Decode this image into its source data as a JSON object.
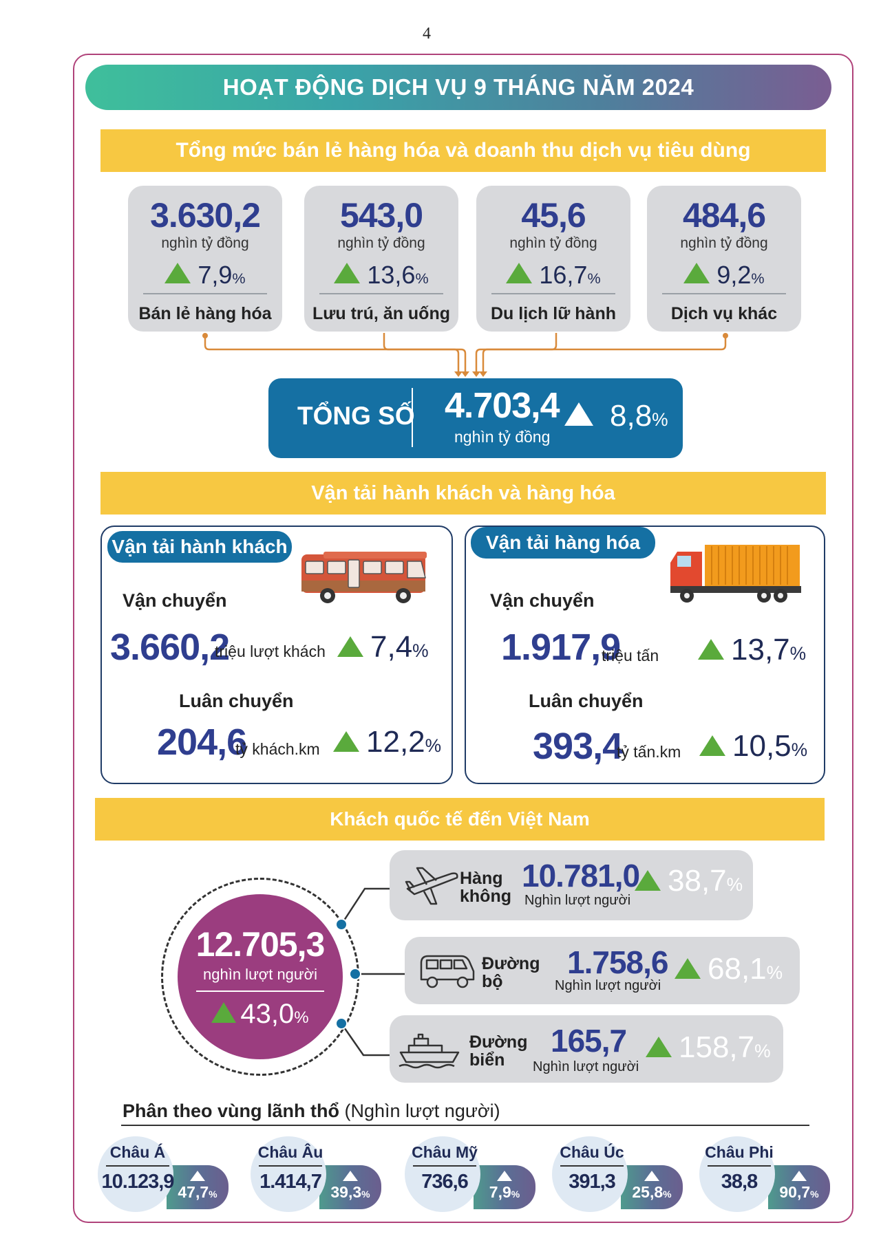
{
  "page_number": "4",
  "main_title": "HOẠT ĐỘNG DỊCH VỤ 9 THÁNG NĂM 2024",
  "retail": {
    "banner": "Tổng mức bán lẻ hàng hóa và doanh thu dịch vụ tiêu dùng",
    "cards": [
      {
        "value": "3.630,2",
        "unit": "nghìn tỷ đồng",
        "growth": "7,9",
        "label": "Bán lẻ hàng hóa"
      },
      {
        "value": "543,0",
        "unit": "nghìn tỷ đồng",
        "growth": "13,6",
        "label": "Lưu trú, ăn uống"
      },
      {
        "value": "45,6",
        "unit": "nghìn tỷ đồng",
        "growth": "16,7",
        "label": "Du lịch lữ hành"
      },
      {
        "value": "484,6",
        "unit": "nghìn tỷ đồng",
        "growth": "9,2",
        "label": "Dịch vụ khác"
      }
    ],
    "percent_sign": "%",
    "total": {
      "label": "TỔNG SỐ",
      "value": "4.703,4",
      "unit": "nghìn tỷ đồng",
      "growth": "8,8"
    }
  },
  "transport": {
    "banner": "Vận tải hành khách và hàng hóa",
    "passenger": {
      "title": "Vận tải hành khách",
      "carry_label": "Vận chuyển",
      "carry_value": "3.660,2",
      "carry_unit": "triệu lượt khách",
      "carry_growth": "7,4",
      "rotate_label": "Luân chuyển",
      "rotate_value": "204,6",
      "rotate_unit": "tỷ khách.km",
      "rotate_growth": "12,2"
    },
    "cargo": {
      "title": "Vận tải hàng hóa",
      "carry_label": "Vận chuyển",
      "carry_value": "1.917,9",
      "carry_unit": "triệu tấn",
      "carry_growth": "13,7",
      "rotate_label": "Luân chuyển",
      "rotate_value": "393,4",
      "rotate_unit": "tỷ tấn.km",
      "rotate_growth": "10,5"
    }
  },
  "international": {
    "banner": "Khách quốc tế đến Việt Nam",
    "total_value": "12.705,3",
    "total_unit": "nghìn lượt người",
    "total_growth": "43,0",
    "modes": [
      {
        "name_line1": "Hàng",
        "name_line2": "không",
        "value": "10.781,0",
        "unit": "Nghìn lượt người",
        "growth": "38,7",
        "icon": "airplane-icon"
      },
      {
        "name_line1": "Đường",
        "name_line2": "bộ",
        "value": "1.758,6",
        "unit": "Nghìn lượt người",
        "growth": "68,1",
        "icon": "van-icon"
      },
      {
        "name_line1": "Đường",
        "name_line2": "biển",
        "value": "165,7",
        "unit": "Nghìn lượt người",
        "growth": "158,7",
        "icon": "ship-icon"
      }
    ],
    "region_title_bold": "Phân theo vùng lãnh thổ",
    "region_title_rest": " (Nghìn lượt người)",
    "regions": [
      {
        "name": "Châu Á",
        "value": "10.123,9",
        "growth": "47,7"
      },
      {
        "name": "Châu Âu",
        "value": "1.414,7",
        "growth": "39,3"
      },
      {
        "name": "Châu Mỹ",
        "value": "736,6",
        "growth": "7,9"
      },
      {
        "name": "Châu Úc",
        "value": "391,3",
        "growth": "25,8"
      },
      {
        "name": "Châu Phi",
        "value": "38,8",
        "growth": "90,7"
      }
    ]
  },
  "colors": {
    "accent_blue": "#1570a3",
    "value_navy": "#2f3e8f",
    "growth_green": "#5aaa3c",
    "banner_yellow": "#f7c842",
    "circle_purple": "#9b3d7f",
    "frame_magenta": "#b0427a"
  }
}
